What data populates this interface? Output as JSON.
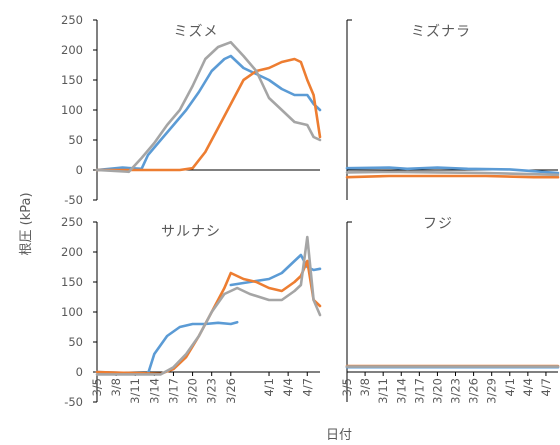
{
  "figure": {
    "ylabel": "根圧 (kPa)",
    "xlabel": "日付"
  },
  "colors": {
    "blue": "#5b9bd5",
    "orange": "#ed7d31",
    "gray": "#a5a5a5",
    "axis": "#000000",
    "text": "#595959"
  },
  "chart_data": [
    {
      "type": "line",
      "title": "ミズメ",
      "panel": "top-left",
      "ylim": [
        -50,
        250
      ],
      "yticks": [
        -50,
        0,
        50,
        100,
        150,
        200,
        250
      ],
      "x_range": [
        "3/5",
        "4/9"
      ],
      "xtick_labels": [],
      "series": [
        {
          "color": "blue",
          "points": [
            [
              "3/5",
              0
            ],
            [
              "3/9",
              4
            ],
            [
              "3/12",
              2
            ],
            [
              "3/13",
              25
            ],
            [
              "3/15",
              50
            ],
            [
              "3/17",
              75
            ],
            [
              "3/19",
              100
            ],
            [
              "3/21",
              130
            ],
            [
              "3/23",
              165
            ],
            [
              "3/25",
              185
            ],
            [
              "3/26",
              190
            ],
            [
              "3/28",
              170
            ],
            [
              "3/30",
              160
            ],
            [
              "4/1",
              150
            ],
            [
              "4/3",
              135
            ],
            [
              "4/5",
              125
            ],
            [
              "4/7",
              125
            ],
            [
              "4/8",
              110
            ],
            [
              "4/9",
              100
            ]
          ]
        },
        {
          "color": "orange",
          "points": [
            [
              "3/5",
              0
            ],
            [
              "3/18",
              0
            ],
            [
              "3/20",
              3
            ],
            [
              "3/22",
              30
            ],
            [
              "3/24",
              70
            ],
            [
              "3/26",
              110
            ],
            [
              "3/28",
              150
            ],
            [
              "3/30",
              165
            ],
            [
              "4/1",
              170
            ],
            [
              "4/3",
              180
            ],
            [
              "4/5",
              185
            ],
            [
              "4/6",
              180
            ],
            [
              "4/7",
              150
            ],
            [
              "4/8",
              125
            ],
            [
              "4/9",
              55
            ]
          ]
        },
        {
          "color": "gray",
          "points": [
            [
              "3/5",
              0
            ],
            [
              "3/10",
              -3
            ],
            [
              "3/12",
              20
            ],
            [
              "3/14",
              45
            ],
            [
              "3/16",
              75
            ],
            [
              "3/18",
              100
            ],
            [
              "3/20",
              140
            ],
            [
              "3/22",
              185
            ],
            [
              "3/24",
              205
            ],
            [
              "3/26",
              213
            ],
            [
              "3/28",
              190
            ],
            [
              "3/30",
              165
            ],
            [
              "4/1",
              120
            ],
            [
              "4/3",
              100
            ],
            [
              "4/5",
              80
            ],
            [
              "4/7",
              75
            ],
            [
              "4/8",
              55
            ],
            [
              "4/9",
              50
            ]
          ]
        }
      ]
    },
    {
      "type": "line",
      "title": "ミズナラ",
      "panel": "top-right",
      "ylim": [
        -50,
        250
      ],
      "x_range": [
        "3/5",
        "4/9"
      ],
      "xtick_labels": [],
      "series": [
        {
          "color": "blue",
          "points": [
            [
              "3/5",
              3
            ],
            [
              "3/12",
              4
            ],
            [
              "3/15",
              2
            ],
            [
              "3/20",
              4
            ],
            [
              "3/25",
              2
            ],
            [
              "4/1",
              1
            ],
            [
              "4/5",
              -2
            ],
            [
              "4/9",
              -5
            ]
          ]
        },
        {
          "color": "orange",
          "points": [
            [
              "3/5",
              -12
            ],
            [
              "3/12",
              -10
            ],
            [
              "3/20",
              -10
            ],
            [
              "3/28",
              -10
            ],
            [
              "4/5",
              -12
            ],
            [
              "4/9",
              -12
            ]
          ]
        },
        {
          "color": "gray",
          "points": [
            [
              "3/5",
              -4
            ],
            [
              "3/12",
              -3
            ],
            [
              "3/20",
              -4
            ],
            [
              "3/28",
              -5
            ],
            [
              "4/5",
              -7
            ],
            [
              "4/9",
              -8
            ]
          ]
        }
      ]
    },
    {
      "type": "line",
      "title": "サルナシ",
      "panel": "bottom-left",
      "ylim": [
        -50,
        250
      ],
      "yticks": [
        -50,
        0,
        50,
        100,
        150,
        200,
        250
      ],
      "x_range": [
        "3/5",
        "4/9"
      ],
      "xtick_labels": [
        "3/5",
        "3/8",
        "3/11",
        "3/14",
        "3/17",
        "3/20",
        "3/23",
        "3/26",
        "4/1",
        "4/4",
        "4/7"
      ],
      "series": [
        {
          "color": "blue",
          "points": [
            [
              "3/5",
              0
            ],
            [
              "3/13",
              -3
            ],
            [
              "3/14",
              30
            ],
            [
              "3/16",
              60
            ],
            [
              "3/18",
              75
            ],
            [
              "3/20",
              80
            ],
            [
              "3/22",
              80
            ],
            [
              "3/24",
              82
            ],
            [
              "3/26",
              80
            ],
            [
              "3/27",
              83
            ]
          ]
        },
        {
          "color": "blue",
          "points": [
            [
              "3/26",
              145
            ],
            [
              "3/29",
              150
            ],
            [
              "4/1",
              155
            ],
            [
              "4/3",
              165
            ],
            [
              "4/5",
              185
            ],
            [
              "4/6",
              195
            ],
            [
              "4/7",
              175
            ],
            [
              "4/8",
              170
            ],
            [
              "4/9",
              172
            ]
          ]
        },
        {
          "color": "orange",
          "points": [
            [
              "3/5",
              0
            ],
            [
              "3/15",
              -3
            ],
            [
              "3/17",
              5
            ],
            [
              "3/19",
              25
            ],
            [
              "3/21",
              60
            ],
            [
              "3/23",
              100
            ],
            [
              "3/25",
              140
            ],
            [
              "3/26",
              165
            ],
            [
              "3/28",
              155
            ],
            [
              "3/30",
              150
            ],
            [
              "4/1",
              140
            ],
            [
              "4/3",
              135
            ],
            [
              "4/5",
              150
            ],
            [
              "4/6",
              160
            ],
            [
              "4/7",
              185
            ],
            [
              "4/8",
              120
            ],
            [
              "4/9",
              110
            ]
          ]
        },
        {
          "color": "gray",
          "points": [
            [
              "3/5",
              -4
            ],
            [
              "3/15",
              -4
            ],
            [
              "3/17",
              8
            ],
            [
              "3/19",
              30
            ],
            [
              "3/21",
              60
            ],
            [
              "3/23",
              100
            ],
            [
              "3/25",
              130
            ],
            [
              "3/27",
              140
            ],
            [
              "3/29",
              130
            ],
            [
              "4/1",
              120
            ],
            [
              "4/3",
              120
            ],
            [
              "4/5",
              135
            ],
            [
              "4/6",
              145
            ],
            [
              "4/7",
              225
            ],
            [
              "4/8",
              120
            ],
            [
              "4/9",
              95
            ]
          ]
        }
      ]
    },
    {
      "type": "line",
      "title": "フジ",
      "panel": "bottom-right",
      "ylim": [
        -50,
        250
      ],
      "x_range": [
        "3/5",
        "4/9"
      ],
      "xtick_labels": [
        "3/5",
        "3/8",
        "3/11",
        "3/14",
        "3/17",
        "3/20",
        "3/23",
        "3/26",
        "3/29",
        "4/1",
        "4/4",
        "4/7"
      ],
      "series": [
        {
          "color": "blue",
          "points": [
            [
              "3/5",
              8
            ],
            [
              "3/15",
              8
            ],
            [
              "3/25",
              8
            ],
            [
              "4/4",
              8
            ],
            [
              "4/9",
              8
            ]
          ]
        },
        {
          "color": "orange",
          "points": [
            [
              "3/5",
              10
            ],
            [
              "3/15",
              10
            ],
            [
              "3/25",
              10
            ],
            [
              "4/4",
              10
            ],
            [
              "4/9",
              10
            ]
          ]
        },
        {
          "color": "gray",
          "points": [
            [
              "3/5",
              9
            ],
            [
              "3/15",
              9
            ],
            [
              "3/25",
              9
            ],
            [
              "4/4",
              9
            ],
            [
              "4/9",
              9
            ]
          ]
        }
      ]
    }
  ]
}
